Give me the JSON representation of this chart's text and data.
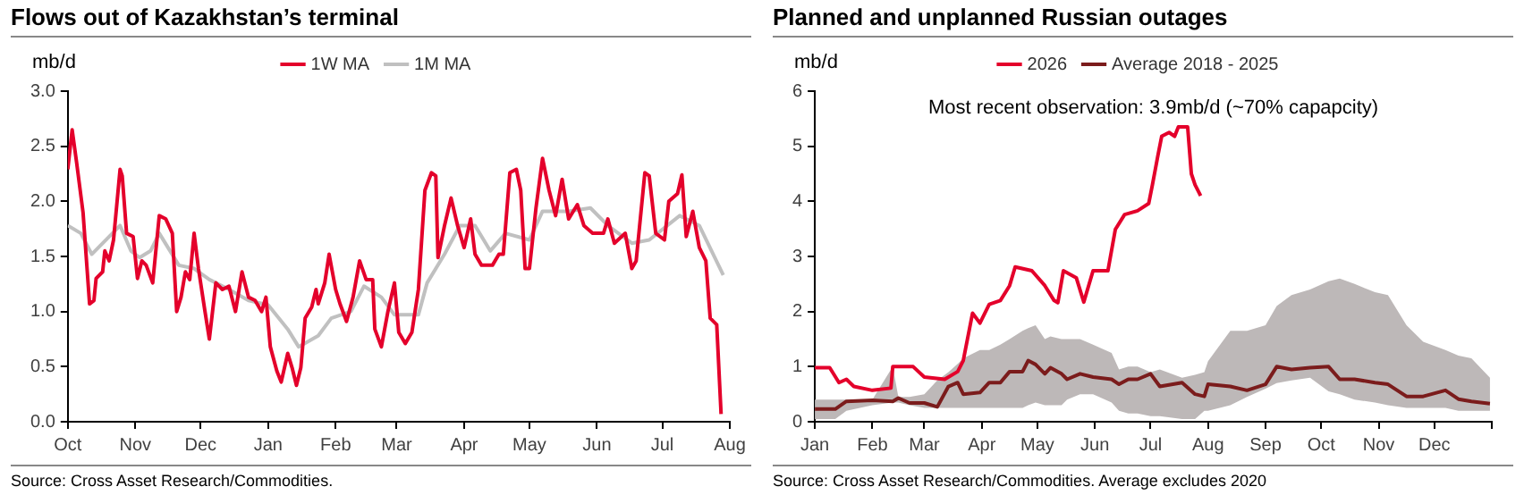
{
  "chart_data": [
    {
      "type": "line",
      "title": "Flows out of Kazakhstan’s terminal",
      "ylabel": "mb/d",
      "legend": "top",
      "xlim": [
        "2025-10-01",
        "2026-08-01"
      ],
      "xticks": [
        {
          "value": "2025-10-01",
          "label": "Oct"
        },
        {
          "value": "2025-11-01",
          "label": "Nov"
        },
        {
          "value": "2025-12-01",
          "label": "Dec"
        },
        {
          "value": "2026-01-01",
          "label": "Jan"
        },
        {
          "value": "2026-02-01",
          "label": "Feb"
        },
        {
          "value": "2026-03-01",
          "label": "Mar"
        },
        {
          "value": "2026-04-01",
          "label": "Apr"
        },
        {
          "value": "2026-05-01",
          "label": "May"
        },
        {
          "value": "2026-06-01",
          "label": "Jun"
        },
        {
          "value": "2026-07-01",
          "label": "Jul"
        },
        {
          "value": "2026-08-01",
          "label": "Aug"
        }
      ],
      "ylim": [
        0,
        3
      ],
      "yticks": [
        {
          "value": 0,
          "label": "0.0"
        },
        {
          "value": 0.5,
          "label": "0.5"
        },
        {
          "value": 1,
          "label": "1.0"
        },
        {
          "value": 1.5,
          "label": "1.5"
        },
        {
          "value": 2,
          "label": "2.0"
        },
        {
          "value": 2.5,
          "label": "2.5"
        },
        {
          "value": 3,
          "label": "3.0"
        }
      ],
      "series": [
        {
          "name": "1W MA",
          "color": "#e4002b",
          "x": [
            "2025-10-01",
            "2025-10-03",
            "2025-10-05",
            "2025-10-08",
            "2025-10-11",
            "2025-10-13",
            "2025-10-14",
            "2025-10-17",
            "2025-10-18",
            "2025-10-20",
            "2025-10-22",
            "2025-10-25",
            "2025-10-26",
            "2025-10-28",
            "2025-10-31",
            "2025-11-02",
            "2025-11-04",
            "2025-11-06",
            "2025-11-09",
            "2025-11-12",
            "2025-11-15",
            "2025-11-18",
            "2025-11-20",
            "2025-11-22",
            "2025-11-24",
            "2025-11-26",
            "2025-11-28",
            "2025-11-30",
            "2025-12-03",
            "2025-12-05",
            "2025-12-08",
            "2025-12-11",
            "2025-12-14",
            "2025-12-17",
            "2025-12-20",
            "2025-12-23",
            "2025-12-26",
            "2025-12-29",
            "2025-12-31",
            "2026-01-02",
            "2026-01-05",
            "2026-01-07",
            "2026-01-10",
            "2026-01-12",
            "2026-01-14",
            "2026-01-16",
            "2026-01-18",
            "2026-01-21",
            "2026-01-23",
            "2026-01-24",
            "2026-01-27",
            "2026-01-29",
            "2026-02-01",
            "2026-02-03",
            "2026-02-06",
            "2026-02-09",
            "2026-02-12",
            "2026-02-15",
            "2026-02-18",
            "2026-02-19",
            "2026-02-22",
            "2026-02-25",
            "2026-02-28",
            "2026-03-02",
            "2026-03-05",
            "2026-03-08",
            "2026-03-11",
            "2026-03-14",
            "2026-03-17",
            "2026-03-19",
            "2026-03-20",
            "2026-03-23",
            "2026-03-26",
            "2026-03-29",
            "2026-04-01",
            "2026-04-04",
            "2026-04-06",
            "2026-04-09",
            "2026-04-14",
            "2026-04-17",
            "2026-04-19",
            "2026-04-22",
            "2026-04-25",
            "2026-04-27",
            "2026-04-29",
            "2026-05-01",
            "2026-05-04",
            "2026-05-07",
            "2026-05-10",
            "2026-05-13",
            "2026-05-16",
            "2026-05-19",
            "2026-05-23",
            "2026-05-26",
            "2026-05-30",
            "2026-06-04",
            "2026-06-06",
            "2026-06-09",
            "2026-06-14",
            "2026-06-17",
            "2026-06-19",
            "2026-06-23",
            "2026-06-25",
            "2026-06-28",
            "2026-07-02",
            "2026-07-04",
            "2026-07-08",
            "2026-07-10",
            "2026-07-12",
            "2026-07-15",
            "2026-07-18",
            "2026-07-21",
            "2026-07-23",
            "2026-07-26",
            "2026-07-28"
          ],
          "values": [
            2.29,
            2.65,
            2.36,
            1.9,
            1.07,
            1.1,
            1.3,
            1.36,
            1.55,
            1.46,
            1.65,
            2.29,
            2.23,
            1.71,
            1.68,
            1.3,
            1.46,
            1.42,
            1.26,
            1.87,
            1.84,
            1.71,
            1.0,
            1.13,
            1.36,
            1.29,
            1.71,
            1.39,
            1.0,
            0.75,
            1.26,
            1.2,
            1.23,
            1.0,
            1.36,
            1.13,
            1.1,
            1.0,
            1.13,
            0.68,
            0.46,
            0.36,
            0.62,
            0.49,
            0.33,
            0.49,
            0.94,
            1.04,
            1.2,
            1.07,
            1.26,
            1.52,
            1.2,
            1.07,
            0.91,
            1.13,
            1.46,
            1.29,
            1.29,
            0.84,
            0.68,
            1.0,
            1.26,
            0.81,
            0.71,
            0.81,
            1.2,
            2.1,
            2.26,
            2.23,
            1.49,
            1.78,
            2.03,
            1.78,
            1.58,
            1.84,
            1.52,
            1.42,
            1.42,
            1.52,
            1.52,
            2.26,
            2.29,
            2.1,
            1.39,
            1.39,
            1.94,
            2.39,
            2.1,
            1.87,
            2.2,
            1.84,
            1.97,
            1.78,
            1.71,
            1.71,
            1.84,
            1.62,
            1.71,
            1.39,
            1.46,
            2.26,
            2.23,
            1.71,
            1.65,
            2.0,
            2.07,
            2.24,
            1.68,
            1.91,
            1.58,
            1.46,
            0.94,
            0.88,
            0.07
          ]
        },
        {
          "name": "1M MA",
          "color": "#c0c0c0",
          "x": [
            "2025-10-01",
            "2025-10-07",
            "2025-10-12",
            "2025-10-25",
            "2025-10-30",
            "2025-11-03",
            "2025-11-08",
            "2025-11-12",
            "2025-11-21",
            "2025-11-28",
            "2025-12-05",
            "2025-12-14",
            "2025-12-23",
            "2026-01-01",
            "2026-01-10",
            "2026-01-15",
            "2026-01-24",
            "2026-01-30",
            "2026-02-08",
            "2026-02-14",
            "2026-02-22",
            "2026-02-28",
            "2026-03-11",
            "2026-03-15",
            "2026-03-23",
            "2026-03-30",
            "2026-04-06",
            "2026-04-13",
            "2026-04-20",
            "2026-05-01",
            "2026-05-07",
            "2026-05-19",
            "2026-05-29",
            "2026-06-06",
            "2026-06-17",
            "2026-06-25",
            "2026-07-09",
            "2026-07-18",
            "2026-07-29"
          ],
          "values": [
            1.78,
            1.71,
            1.52,
            1.78,
            1.55,
            1.49,
            1.55,
            1.71,
            1.42,
            1.39,
            1.29,
            1.2,
            1.1,
            1.06,
            0.84,
            0.68,
            0.78,
            0.94,
            1.0,
            1.23,
            1.13,
            0.97,
            0.97,
            1.26,
            1.52,
            1.78,
            1.78,
            1.55,
            1.71,
            1.65,
            1.91,
            1.91,
            1.94,
            1.78,
            1.62,
            1.65,
            1.87,
            1.78,
            1.33
          ]
        }
      ],
      "annotations": [
        "Source: Cross Asset Research/Commodities."
      ]
    },
    {
      "type": "line",
      "title": "Planned and unplanned Russian outages",
      "ylabel": "mb/d",
      "legend": "top",
      "xlim": [
        "2026-01-01",
        "2027-01-01"
      ],
      "xticks": [
        {
          "value": "2026-01-01",
          "label": "Jan"
        },
        {
          "value": "2026-02-01",
          "label": "Feb"
        },
        {
          "value": "2026-03-01",
          "label": "Mar"
        },
        {
          "value": "2026-04-01",
          "label": "Apr"
        },
        {
          "value": "2026-05-01",
          "label": "May"
        },
        {
          "value": "2026-06-01",
          "label": "Jun"
        },
        {
          "value": "2026-07-01",
          "label": "Jul"
        },
        {
          "value": "2026-08-01",
          "label": "Aug"
        },
        {
          "value": "2026-09-01",
          "label": "Sep"
        },
        {
          "value": "2026-10-01",
          "label": "Oct"
        },
        {
          "value": "2026-11-01",
          "label": "Nov"
        },
        {
          "value": "2026-12-01",
          "label": "Dec"
        },
        {
          "value": "2027-01-01",
          "label": null
        }
      ],
      "ylim": [
        0,
        6
      ],
      "yticks": [
        0,
        1,
        2,
        3,
        4,
        5,
        6
      ],
      "series": [
        {
          "name": "2026",
          "color": "#e4002b",
          "x": [
            "2026-01-01",
            "2026-01-09",
            "2026-01-14",
            "2026-01-18",
            "2026-01-22",
            "2026-02-01",
            "2026-02-11",
            "2026-02-12",
            "2026-02-23",
            "2026-03-01",
            "2026-03-12",
            "2026-03-19",
            "2026-03-22",
            "2026-03-27",
            "2026-03-31",
            "2026-04-05",
            "2026-04-11",
            "2026-04-16",
            "2026-04-19",
            "2026-04-28",
            "2026-05-05",
            "2026-05-10",
            "2026-05-12",
            "2026-05-15",
            "2026-05-22",
            "2026-05-26",
            "2026-05-31",
            "2026-06-08",
            "2026-06-12",
            "2026-06-17",
            "2026-06-24",
            "2026-06-30",
            "2026-07-02",
            "2026-07-05",
            "2026-07-07",
            "2026-07-11",
            "2026-07-14",
            "2026-07-16",
            "2026-07-21",
            "2026-07-23",
            "2026-07-25",
            "2026-07-28"
          ],
          "values": [
            0.98,
            0.98,
            0.71,
            0.77,
            0.64,
            0.57,
            0.61,
            1.0,
            1.0,
            0.81,
            0.77,
            0.91,
            1.11,
            1.97,
            1.79,
            2.13,
            2.2,
            2.47,
            2.81,
            2.74,
            2.47,
            2.2,
            2.16,
            2.74,
            2.61,
            2.17,
            2.74,
            2.74,
            3.49,
            3.76,
            3.83,
            3.96,
            4.3,
            4.84,
            5.18,
            5.25,
            5.18,
            5.35,
            5.35,
            4.5,
            4.3,
            4.1
          ]
        },
        {
          "name": "Average 2018 - 2025",
          "color": "#7b1c1c",
          "x": [
            "2026-01-01",
            "2026-01-12",
            "2026-01-18",
            "2026-02-01",
            "2026-02-12",
            "2026-02-15",
            "2026-02-21",
            "2026-03-01",
            "2026-03-08",
            "2026-03-14",
            "2026-03-19",
            "2026-03-22",
            "2026-03-31",
            "2026-04-05",
            "2026-04-11",
            "2026-04-16",
            "2026-04-23",
            "2026-04-26",
            "2026-04-30",
            "2026-05-05",
            "2026-05-08",
            "2026-05-14",
            "2026-05-17",
            "2026-05-24",
            "2026-05-31",
            "2026-06-10",
            "2026-06-14",
            "2026-06-19",
            "2026-06-24",
            "2026-07-01",
            "2026-07-06",
            "2026-07-18",
            "2026-07-25",
            "2026-07-30",
            "2026-08-01",
            "2026-08-13",
            "2026-08-22",
            "2026-09-01",
            "2026-09-07",
            "2026-09-15",
            "2026-09-25",
            "2026-10-05",
            "2026-10-11",
            "2026-10-19",
            "2026-10-30",
            "2026-11-06",
            "2026-11-16",
            "2026-11-25",
            "2026-12-07",
            "2026-12-14",
            "2026-12-21",
            "2026-12-31"
          ],
          "values": [
            0.23,
            0.23,
            0.37,
            0.39,
            0.37,
            0.43,
            0.34,
            0.34,
            0.27,
            0.64,
            0.71,
            0.5,
            0.53,
            0.71,
            0.71,
            0.91,
            0.91,
            1.11,
            1.04,
            0.87,
            0.98,
            0.87,
            0.77,
            0.87,
            0.81,
            0.77,
            0.68,
            0.77,
            0.77,
            0.87,
            0.64,
            0.71,
            0.5,
            0.46,
            0.68,
            0.64,
            0.57,
            0.68,
            1.0,
            0.95,
            0.98,
            1.0,
            0.77,
            0.77,
            0.71,
            0.68,
            0.46,
            0.46,
            0.57,
            0.41,
            0.37,
            0.33
          ],
          "lower": [
            0.05,
            0.05,
            0.2,
            0.3,
            0.35,
            0.35,
            0.3,
            0.25,
            0.25,
            0.25,
            0.25,
            0.25,
            0.25,
            0.25,
            0.25,
            0.25,
            0.25,
            0.3,
            0.35,
            0.3,
            0.3,
            0.3,
            0.4,
            0.5,
            0.5,
            0.35,
            0.2,
            0.15,
            0.15,
            0.1,
            0.1,
            0.05,
            0.05,
            0.2,
            0.2,
            0.3,
            0.45,
            0.6,
            0.7,
            0.75,
            0.8,
            0.55,
            0.5,
            0.4,
            0.35,
            0.3,
            0.25,
            0.25,
            0.25,
            0.2,
            0.2,
            0.2
          ],
          "upper": [
            0.4,
            0.4,
            0.4,
            0.4,
            1.0,
            0.45,
            0.45,
            0.5,
            0.75,
            0.9,
            1.05,
            1.15,
            1.3,
            1.3,
            1.4,
            1.5,
            1.65,
            1.7,
            1.75,
            1.5,
            1.55,
            1.5,
            1.5,
            1.5,
            1.4,
            1.25,
            0.95,
            1.0,
            1.0,
            0.9,
            0.95,
            0.8,
            0.85,
            0.9,
            1.1,
            1.65,
            1.65,
            1.75,
            2.1,
            2.3,
            2.4,
            2.55,
            2.6,
            2.5,
            2.35,
            2.3,
            1.75,
            1.45,
            1.3,
            1.2,
            1.15,
            0.8
          ]
        }
      ],
      "annotations": [
        "Most recent observation: 3.9mb/d (~70% capapcity)",
        "Source: Cross Asset Research/Commodities. Average excludes 2020"
      ]
    }
  ]
}
